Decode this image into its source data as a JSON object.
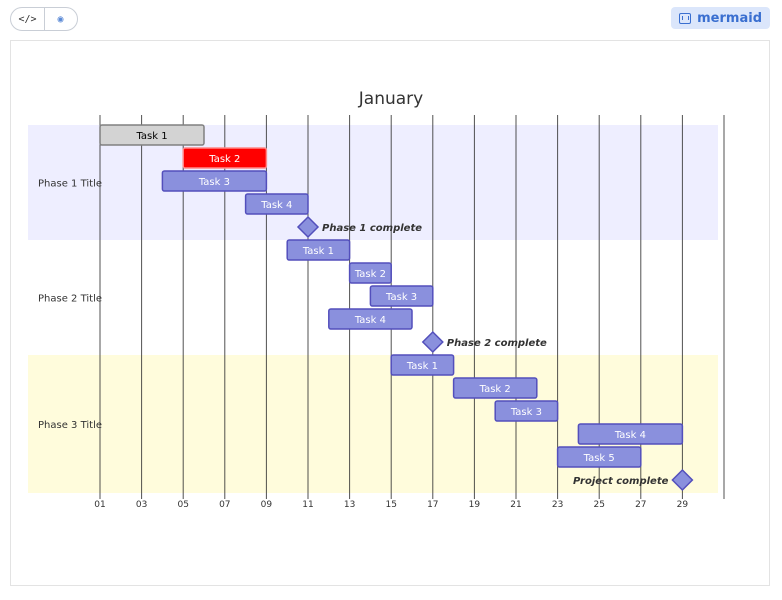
{
  "toolbar": {
    "code_icon": "code-icon",
    "view_icon": "eye-icon",
    "code_glyph": "</>",
    "view_glyph": "◉",
    "brand_label": "mermaid",
    "brand_icon": "mermaid-logo-icon"
  },
  "chart_data": {
    "type": "gantt",
    "title": "January",
    "x_axis": {
      "unit": "day",
      "range": [
        1,
        31
      ],
      "ticks": [
        "01",
        "03",
        "05",
        "07",
        "09",
        "11",
        "13",
        "15",
        "17",
        "19",
        "21",
        "23",
        "25",
        "27",
        "29"
      ],
      "grid": true
    },
    "colors": {
      "task_fill": "#8a90dd",
      "task_stroke": "#534fbc",
      "done_fill": "#d3d3d3",
      "done_stroke": "#808080",
      "crit_fill": "#ff0000",
      "crit_stroke": "#ff8888",
      "section_1_bg": "#eeeeff",
      "section_2_bg": "#ffffff",
      "section_3_bg": "#fffcdc",
      "grid": "#333333"
    },
    "sections": [
      {
        "name": "Phase 1 Title",
        "tasks": [
          {
            "name": "Task 1",
            "start": 1,
            "end": 6,
            "status": "done"
          },
          {
            "name": "Task 2",
            "start": 5,
            "end": 9,
            "status": "crit"
          },
          {
            "name": "Task 3",
            "start": 4,
            "end": 9,
            "status": "active"
          },
          {
            "name": "Task 4",
            "start": 8,
            "end": 11,
            "status": "active"
          },
          {
            "name": "Phase 1 complete",
            "date": 11,
            "status": "milestone",
            "label_side": "right"
          }
        ]
      },
      {
        "name": "Phase 2 Title",
        "tasks": [
          {
            "name": "Task 1",
            "start": 10,
            "end": 13,
            "status": "active"
          },
          {
            "name": "Task 2",
            "start": 13,
            "end": 15,
            "status": "active"
          },
          {
            "name": "Task 3",
            "start": 14,
            "end": 17,
            "status": "active"
          },
          {
            "name": "Task 4",
            "start": 12,
            "end": 16,
            "status": "active"
          },
          {
            "name": "Phase 2 complete",
            "date": 17,
            "status": "milestone",
            "label_side": "right"
          }
        ]
      },
      {
        "name": "Phase 3 Title",
        "tasks": [
          {
            "name": "Task 1",
            "start": 15,
            "end": 18,
            "status": "active"
          },
          {
            "name": "Task 2",
            "start": 18,
            "end": 22,
            "status": "active"
          },
          {
            "name": "Task 3",
            "start": 20,
            "end": 23,
            "status": "active"
          },
          {
            "name": "Task 4",
            "start": 24,
            "end": 29,
            "status": "active"
          },
          {
            "name": "Task 5",
            "start": 23,
            "end": 27,
            "status": "active"
          },
          {
            "name": "Project complete",
            "date": 29,
            "status": "milestone",
            "label_side": "left"
          }
        ]
      }
    ]
  }
}
